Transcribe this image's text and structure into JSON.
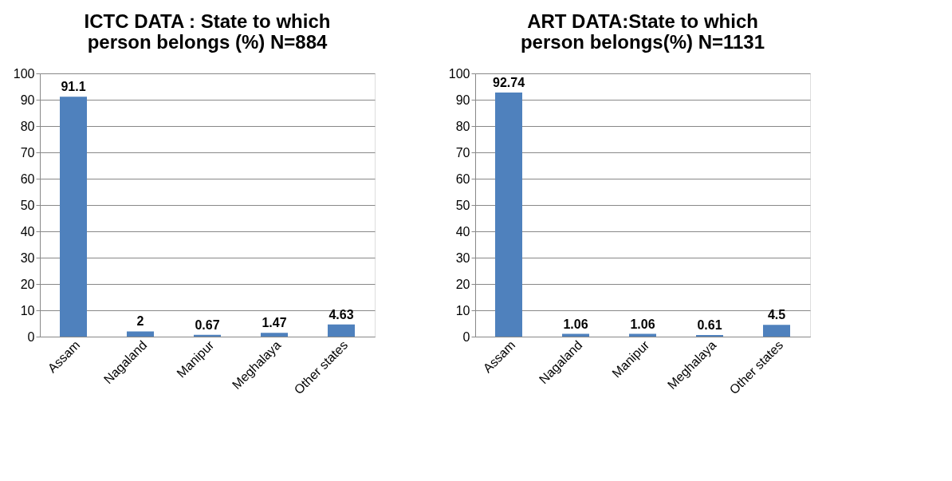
{
  "chart_data": [
    {
      "type": "bar",
      "title": "ICTC DATA : State to which person belongs (%)     N=884",
      "categories": [
        "Assam",
        "Nagaland",
        "Manipur",
        "Meghalaya",
        "Other states"
      ],
      "series": [
        {
          "color": "#4f81bd",
          "values": [
            91.1,
            2,
            0.67,
            1.47,
            4.63
          ]
        }
      ],
      "ylim": [
        0,
        100
      ],
      "yticks": [
        0,
        10,
        20,
        30,
        40,
        50,
        60,
        70,
        80,
        90,
        100
      ],
      "grid": "y",
      "data_labels": true,
      "legend": false
    },
    {
      "type": "bar",
      "title": "ART DATA:State to which person belongs(%)    N=1131",
      "categories": [
        "Assam",
        "Nagaland",
        "Manipur",
        "Meghalaya",
        "Other states"
      ],
      "series": [
        {
          "color": "#4f81bd",
          "values": [
            92.74,
            1.06,
            1.06,
            0.61,
            4.5
          ]
        }
      ],
      "ylim": [
        0,
        100
      ],
      "yticks": [
        0,
        10,
        20,
        30,
        40,
        50,
        60,
        70,
        80,
        90,
        100
      ],
      "grid": "y",
      "data_labels": true,
      "legend": false
    }
  ]
}
